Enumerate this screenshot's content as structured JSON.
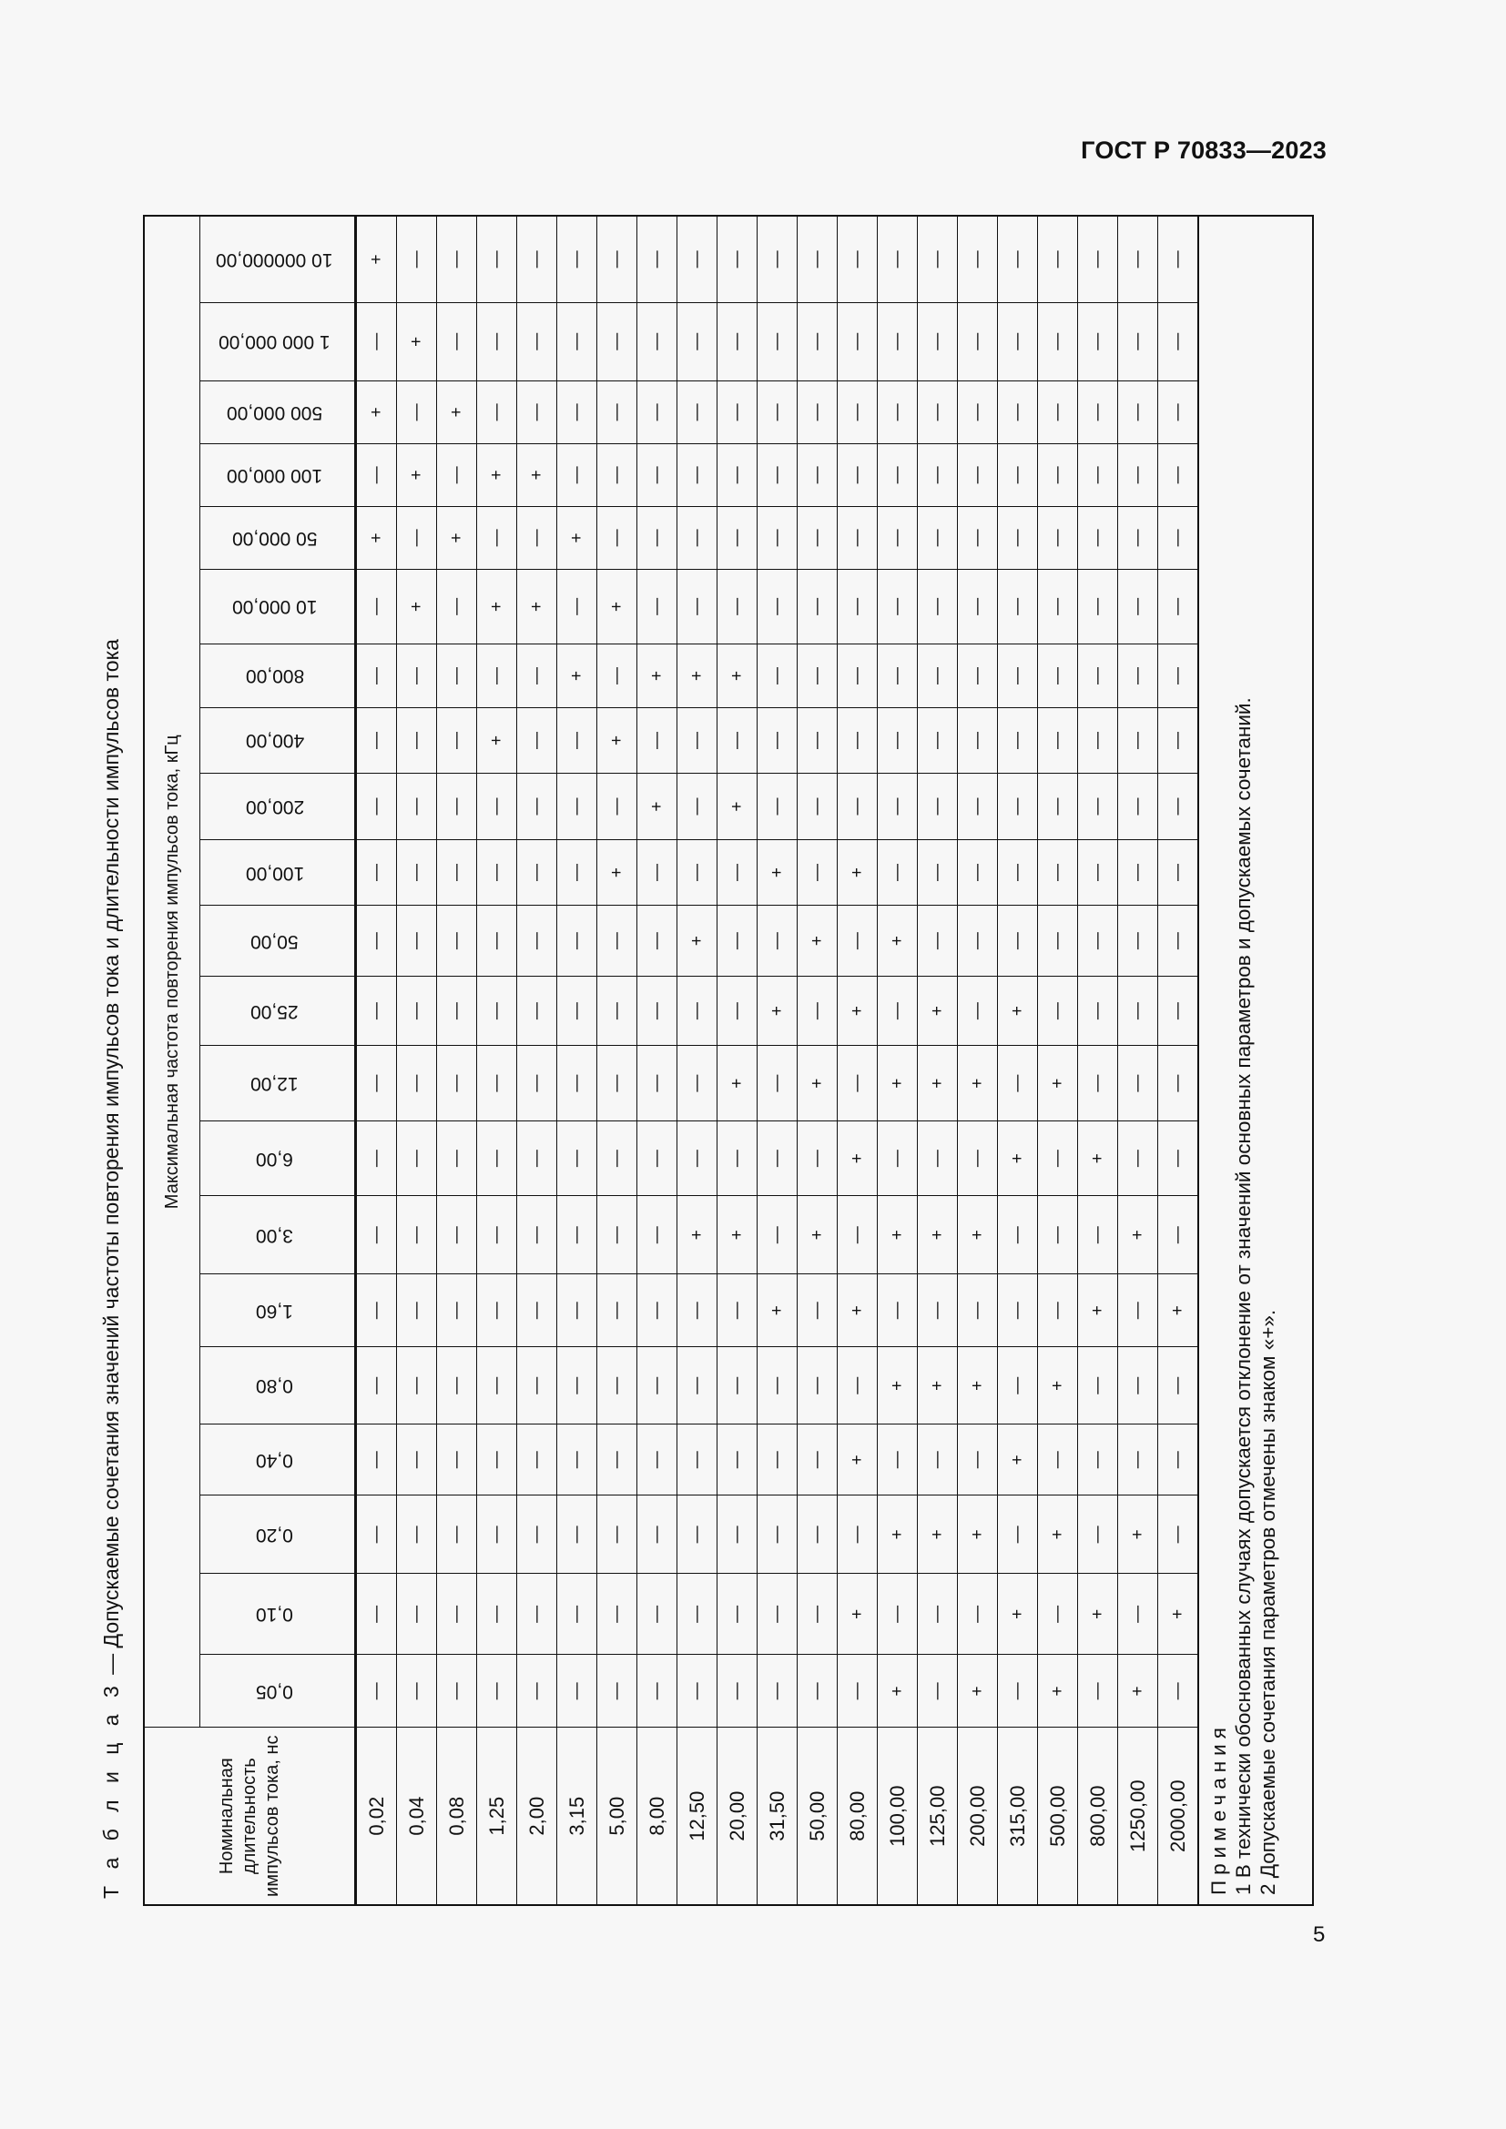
{
  "header": {
    "doc_code": "ГОСТ Р 70833—2023"
  },
  "page_number": "5",
  "table": {
    "caption_label": "Т а б л и ц а  3",
    "caption_text": " — Допускаемые сочетания значений частоты повторения импульсов тока и длительности импульсов тока",
    "row_header": "Номинальная длительность импульсов тока, нс",
    "column_group_header": "Максимальная частота повторения импульсов тока, кГц",
    "frequencies_khz": [
      "0,05",
      "0,10",
      "0,20",
      "0,40",
      "0,80",
      "1,60",
      "3,00",
      "6,00",
      "12,00",
      "25,00",
      "50,00",
      "100,00",
      "200,00",
      "400,00",
      "800,00",
      "10 000,00",
      "50 000,00",
      "100 000,00",
      "500 000,00",
      "1 000 000,00",
      "10 000000,00"
    ],
    "durations_ns": [
      "0,02",
      "0,04",
      "0,08",
      "1,25",
      "2,00",
      "3,15",
      "5,00",
      "8,00",
      "12,50",
      "20,00",
      "31,50",
      "50,00",
      "80,00",
      "100,00",
      "125,00",
      "200,00",
      "315,00",
      "500,00",
      "800,00",
      "1250,00",
      "2000,00"
    ],
    "marks": [
      "————————————————+—+—+",
      "———————————————+—+—+—",
      "————————————————+—+——",
      "—————————————+—+—+———",
      "———————————————+—+———",
      "——————————————+—+————",
      "———————————+—+—+—————",
      "————————————+—+——————",
      "——————+———+———+——————",
      "——————+—+———+—+——————",
      "—————+———+—+—————————",
      "——————+—+—+——————————",
      "—+—+—+—+—+—+—————————",
      "+—+—+—+—+—+——————————",
      "——+—+—+—++———————————",
      "+—+—+—+—+————————————",
      "—+—+———+—+———————————",
      "+—+—+———+————————————",
      "—+———+—+—————————————",
      "+—+———+——————————————",
      "—+———+———————————————"
    ],
    "notes": {
      "heading": "Примечания",
      "items": [
        "1 В технически обоснованных случаях допускается отклонение от значений основных параметров и допускаемых сочетаний.",
        "2 Допускаемые сочетания параметров отмечены знаком «+»."
      ]
    }
  }
}
